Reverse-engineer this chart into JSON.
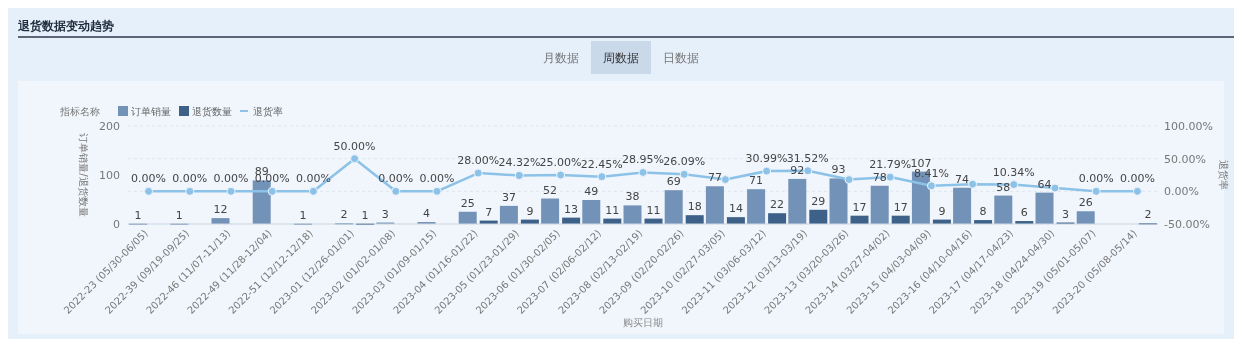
{
  "chart_data": {
    "type": "bar",
    "title": "退货数据变动趋势",
    "annotations": [
      "月数据",
      "周数据",
      "日数据"
    ],
    "legend_title": "指标名称",
    "legend": "top left",
    "xlabel": "购买日期",
    "ylabel": "订单销量/退货数量",
    "y2label": "退货率",
    "grid": "y",
    "categories": [
      "2022-23 (05/30-06/05)",
      "2022-39 (09/19-09/25)",
      "2022-46 (11/07-11/13)",
      "2022-49 (11/28-12/04)",
      "2022-51 (12/12-12/18)",
      "2023-01 (12/26-01/01)",
      "2023-02 (01/02-01/08)",
      "2023-03 (01/09-01/15)",
      "2023-04 (01/16-01/22)",
      "2023-05 (01/23-01/29)",
      "2023-06 (01/30-02/05)",
      "2023-07 (02/06-02/12)",
      "2023-08 (02/13-02/19)",
      "2023-09 (02/20-02/26)",
      "2023-10 (02/27-03/05)",
      "2023-11 (03/06-03/12)",
      "2023-12 (03/13-03/19)",
      "2023-13 (03/20-03/26)",
      "2023-14 (03/27-04/02)",
      "2023-15 (04/03-04/09)",
      "2023-16 (04/10-04/16)",
      "2023-17 (04/17-04/23)",
      "2023-18 (04/24-04/30)",
      "2023-19 (05/01-05/07)",
      "2023-20 (05/08-05/14)"
    ],
    "ylim": [
      0,
      200
    ],
    "yticks": [
      0,
      100,
      200
    ],
    "y2lim": [
      -50,
      100
    ],
    "y2ticks": [
      {
        "value": -50,
        "label": "-50.00%"
      },
      {
        "value": 0,
        "label": "0.00%"
      },
      {
        "value": 50,
        "label": "50.00%"
      },
      {
        "value": 100,
        "label": "100.00%"
      }
    ],
    "series": [
      {
        "name": "订单销量",
        "color": "#7392b8",
        "values": [
          1,
          1,
          12,
          89,
          1,
          2,
          3,
          4,
          25,
          37,
          52,
          49,
          38,
          69,
          77,
          71,
          92,
          93,
          78,
          107,
          74,
          58,
          64,
          26,
          null
        ],
        "value_labels": [
          "1",
          "1",
          "12",
          "89",
          "1",
          "2",
          "3",
          "4",
          "25",
          "37",
          "52",
          "49",
          "38",
          "69",
          "77",
          "71",
          "92",
          "93",
          "78",
          "107",
          "74",
          "58",
          "64",
          "26",
          null
        ]
      },
      {
        "name": "退货数量",
        "color": "#3d6189",
        "values": [
          null,
          null,
          null,
          null,
          null,
          1,
          null,
          null,
          7,
          9,
          13,
          11,
          11,
          18,
          14,
          22,
          29,
          17,
          17,
          9,
          8,
          6,
          3,
          null,
          2
        ],
        "value_labels": [
          null,
          null,
          null,
          null,
          null,
          "1",
          null,
          null,
          "7",
          "9",
          "13",
          "11",
          "11",
          "18",
          "14",
          "22",
          "29",
          "17",
          "17",
          "9",
          "8",
          "6",
          "3",
          null,
          "2"
        ]
      },
      {
        "name": "退货率",
        "type": "line",
        "axis": "y2",
        "color": "#8cc2e8",
        "marker": "circle",
        "values": [
          0,
          0,
          0,
          0,
          0,
          50,
          0,
          0,
          28,
          24.32,
          25,
          22.45,
          28.95,
          26.09,
          18,
          30.99,
          31.52,
          18,
          21.79,
          8.41,
          11,
          10.34,
          5,
          0,
          0
        ],
        "value_labels": [
          "0.00%",
          "0.00%",
          "0.00%",
          "0.00%",
          "0.00%",
          "50.00%",
          "0.00%",
          "0.00%",
          "28.00%",
          "24.32%",
          "25.00%",
          "22.45%",
          "28.95%",
          "26.09%",
          null,
          "30.99%",
          "31.52%",
          null,
          "21.79%",
          "8.41%",
          null,
          "10.34%",
          null,
          "0.00%",
          "0.00%"
        ]
      }
    ]
  }
}
